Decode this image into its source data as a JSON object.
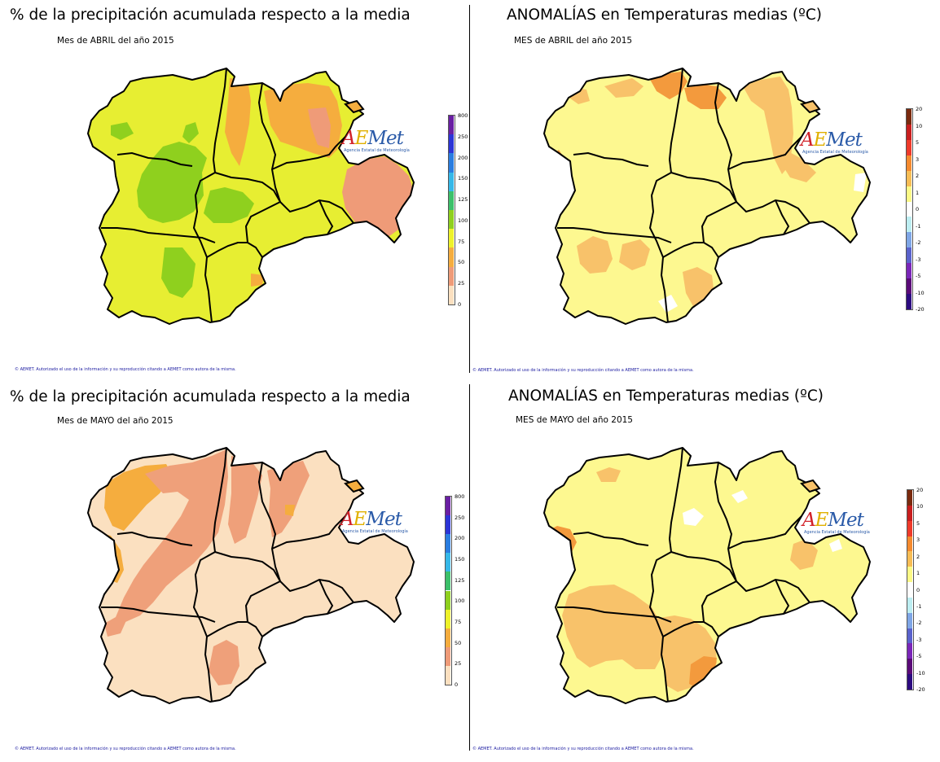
{
  "panels": [
    {
      "title": "% de la precipitación acumulada respecto a la media",
      "subtitle": "Mes de ABRIL del año 2015",
      "variable": "precipitation",
      "legend_ticks": [
        "800",
        "250",
        "200",
        "150",
        "125",
        "100",
        "75",
        "50",
        "25",
        "0"
      ],
      "legend_colors": [
        "#6a1fa3",
        "#2c35d6",
        "#2a7de0",
        "#36b8e8",
        "#3cc06a",
        "#8fd01e",
        "#eef22a",
        "#f5ad3e",
        "#ef9b78",
        "#fbe0c0"
      ],
      "map_palette": {
        "base": "#e7ee32",
        "patch_a": "#8fd01e",
        "patch_b": "#f5ad3e",
        "patch_c": "#ef9b78"
      },
      "footer": "© AEMET. Autorizado el uso de la información y su reproducción citando a AEMET como autora de la misma."
    },
    {
      "title": "ANOMALÍAS en Temperaturas medias (ºC)",
      "subtitle": "MES de ABRIL del año 2015",
      "variable": "temperature_anomaly",
      "legend_ticks": [
        "20",
        "10",
        "5",
        "3",
        "2",
        "1",
        "0",
        "-1",
        "-2",
        "-3",
        "-5",
        "-10",
        "-20"
      ],
      "legend_colors": [
        "#7a2a0e",
        "#c81e1e",
        "#ee3a2a",
        "#f58a2e",
        "#f7bd55",
        "#fcfa86",
        "#ffffff",
        "#bdeef2",
        "#7fa6e6",
        "#5a62cc",
        "#7a26b8",
        "#5a0a78",
        "#2c0a80"
      ],
      "map_palette": {
        "base": "#fdf890",
        "patch_a": "#f8c26a",
        "patch_b": "#f39a3d",
        "patch_c": "#ffffff"
      },
      "footer": "© AEMET. Autorizado el uso de la información y su reproducción citando a AEMET como autora de la misma."
    },
    {
      "title": "% de la precipitación acumulada respecto a la media",
      "subtitle": "Mes de MAYO del año 2015",
      "variable": "precipitation",
      "legend_ticks": [
        "800",
        "250",
        "200",
        "150",
        "125",
        "100",
        "75",
        "50",
        "25",
        "0"
      ],
      "legend_colors": [
        "#6a1fa3",
        "#2c35d6",
        "#2a7de0",
        "#36b8e8",
        "#3cc06a",
        "#8fd01e",
        "#eef22a",
        "#f5ad3e",
        "#ef9b78",
        "#fbe0c0"
      ],
      "map_palette": {
        "base": "#fbe0c0",
        "patch_a": "#efa07a",
        "patch_b": "#f5ad3e",
        "patch_c": "#efa07a"
      },
      "footer": "© AEMET. Autorizado el uso de la información y su reproducción citando a AEMET como autora de la misma."
    },
    {
      "title": "ANOMALÍAS en Temperaturas medias (ºC)",
      "subtitle": "MES de MAYO del año 2015",
      "variable": "temperature_anomaly",
      "legend_ticks": [
        "20",
        "10",
        "5",
        "3",
        "2",
        "1",
        "0",
        "-1",
        "-2",
        "-3",
        "-5",
        "-10",
        "-20"
      ],
      "legend_colors": [
        "#7a2a0e",
        "#c81e1e",
        "#ee3a2a",
        "#f58a2e",
        "#f7bd55",
        "#fcfa86",
        "#ffffff",
        "#bdeef2",
        "#7fa6e6",
        "#5a62cc",
        "#7a26b8",
        "#5a0a78",
        "#2c0a80"
      ],
      "map_palette": {
        "base": "#fdf890",
        "patch_a": "#f8c26a",
        "patch_b": "#f39a3d",
        "patch_c": "#ffffff"
      },
      "footer": "© AEMET. Autorizado el uso de la información y su reproducción citando a AEMET como autora de la misma."
    }
  ],
  "logo": {
    "mark_a": "A",
    "mark_e": "E",
    "mark_rest": "Met",
    "subtitle": "Agencia Estatal de Meteorología"
  }
}
